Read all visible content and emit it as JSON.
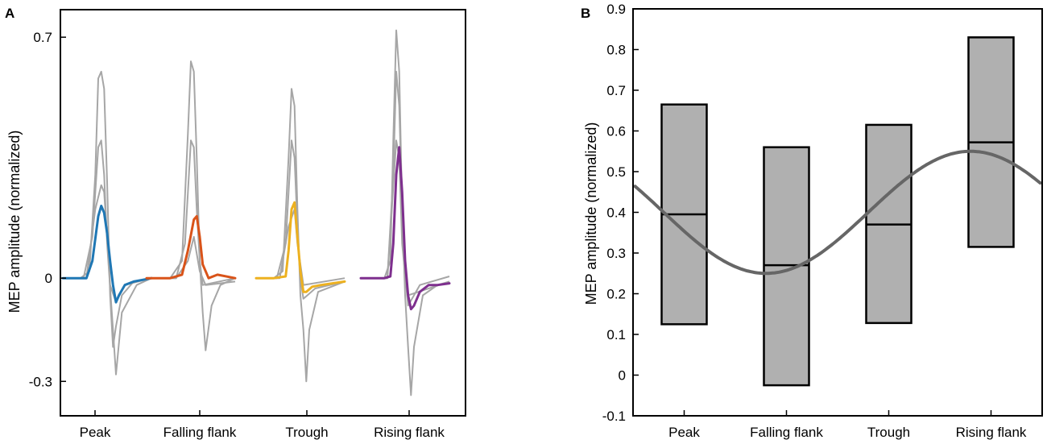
{
  "chart_data": [
    {
      "panel": "A",
      "type": "line",
      "title": "",
      "xlabel": "",
      "ylabel": "MEP amplitude (normalized)",
      "ylim": [
        -0.4,
        0.78
      ],
      "yticks": [
        -0.3,
        0,
        0.7
      ],
      "ytick_labels": [
        "-0.3",
        "0",
        "0.7"
      ],
      "categories": [
        "Peak",
        "Falling flank",
        "Trough",
        "Rising flank"
      ],
      "grid": false,
      "series": [
        {
          "name": "Peak",
          "color": "#1f77b4",
          "mean_trace": [
            [
              0,
              0
            ],
            [
              4,
              0
            ],
            [
              8,
              0
            ],
            [
              10,
              0.05
            ],
            [
              12,
              0.18
            ],
            [
              13,
              0.21
            ],
            [
              14,
              0.19
            ],
            [
              15,
              0.13
            ],
            [
              16,
              0.05
            ],
            [
              17,
              -0.02
            ],
            [
              18,
              -0.07
            ],
            [
              19,
              -0.05
            ],
            [
              21,
              -0.02
            ],
            [
              24,
              -0.01
            ],
            [
              27,
              -0.005
            ],
            [
              30,
              0
            ]
          ],
          "single_trials": [
            [
              [
                0,
                0
              ],
              [
                6,
                0
              ],
              [
                9,
                0.02
              ],
              [
                11,
                0.3
              ],
              [
                12,
                0.58
              ],
              [
                13,
                0.6
              ],
              [
                14,
                0.55
              ],
              [
                15,
                0.28
              ],
              [
                16,
                -0.05
              ],
              [
                17,
                -0.2
              ],
              [
                18,
                -0.14
              ],
              [
                20,
                -0.05
              ],
              [
                24,
                -0.01
              ],
              [
                30,
                0
              ]
            ],
            [
              [
                0,
                0
              ],
              [
                7,
                0
              ],
              [
                10,
                0.12
              ],
              [
                12,
                0.38
              ],
              [
                13,
                0.4
              ],
              [
                14,
                0.3
              ],
              [
                15,
                0.1
              ],
              [
                17,
                -0.15
              ],
              [
                18,
                -0.28
              ],
              [
                20,
                -0.1
              ],
              [
                25,
                -0.02
              ],
              [
                30,
                0
              ]
            ],
            [
              [
                0,
                0
              ],
              [
                8,
                0
              ],
              [
                11,
                0.2
              ],
              [
                13,
                0.27
              ],
              [
                14,
                0.25
              ],
              [
                15,
                0.12
              ],
              [
                16,
                -0.02
              ],
              [
                18,
                -0.07
              ],
              [
                21,
                -0.02
              ],
              [
                30,
                0
              ]
            ]
          ]
        },
        {
          "name": "Falling flank",
          "color": "#d95319",
          "mean_trace": [
            [
              0,
              0
            ],
            [
              8,
              0
            ],
            [
              12,
              0.01
            ],
            [
              14,
              0.08
            ],
            [
              16,
              0.17
            ],
            [
              17,
              0.18
            ],
            [
              18,
              0.12
            ],
            [
              19,
              0.04
            ],
            [
              21,
              0
            ],
            [
              24,
              0.01
            ],
            [
              30,
              0
            ]
          ],
          "single_trials": [
            [
              [
                0,
                0
              ],
              [
                8,
                0
              ],
              [
                12,
                0.05
              ],
              [
                14,
                0.42
              ],
              [
                15,
                0.63
              ],
              [
                16,
                0.6
              ],
              [
                17,
                0.35
              ],
              [
                18,
                0.05
              ],
              [
                19,
                -0.1
              ],
              [
                20,
                -0.21
              ],
              [
                22,
                -0.08
              ],
              [
                25,
                -0.02
              ],
              [
                30,
                0
              ]
            ],
            [
              [
                0,
                0
              ],
              [
                10,
                0
              ],
              [
                13,
                0.1
              ],
              [
                15,
                0.4
              ],
              [
                16,
                0.38
              ],
              [
                17,
                0.2
              ],
              [
                18,
                0.05
              ],
              [
                19,
                -0.02
              ],
              [
                30,
                0
              ]
            ],
            [
              [
                0,
                0
              ],
              [
                10,
                0
              ],
              [
                14,
                0.05
              ],
              [
                16,
                0.12
              ],
              [
                18,
                0.02
              ],
              [
                20,
                -0.02
              ],
              [
                30,
                -0.01
              ]
            ]
          ]
        },
        {
          "name": "Trough",
          "color": "#edb120",
          "mean_trace": [
            [
              0,
              0
            ],
            [
              6,
              0
            ],
            [
              10,
              0.005
            ],
            [
              11,
              0.08
            ],
            [
              12,
              0.2
            ],
            [
              13,
              0.22
            ],
            [
              14,
              0.12
            ],
            [
              15,
              0.02
            ],
            [
              16,
              -0.04
            ],
            [
              17,
              -0.04
            ],
            [
              19,
              -0.025
            ],
            [
              22,
              -0.02
            ],
            [
              30,
              -0.01
            ]
          ],
          "single_trials": [
            [
              [
                0,
                0
              ],
              [
                6,
                0
              ],
              [
                9,
                0.02
              ],
              [
                11,
                0.35
              ],
              [
                12,
                0.55
              ],
              [
                13,
                0.5
              ],
              [
                14,
                0.2
              ],
              [
                15,
                -0.05
              ],
              [
                16,
                -0.15
              ],
              [
                17,
                -0.3
              ],
              [
                18,
                -0.15
              ],
              [
                21,
                -0.04
              ],
              [
                30,
                -0.01
              ]
            ],
            [
              [
                0,
                0
              ],
              [
                7,
                0
              ],
              [
                10,
                0.1
              ],
              [
                12,
                0.4
              ],
              [
                13,
                0.35
              ],
              [
                14,
                0.15
              ],
              [
                15,
                0
              ],
              [
                16,
                -0.06
              ],
              [
                20,
                -0.03
              ],
              [
                30,
                -0.01
              ]
            ],
            [
              [
                0,
                0
              ],
              [
                8,
                0
              ],
              [
                11,
                0.15
              ],
              [
                13,
                0.2
              ],
              [
                14,
                0.1
              ],
              [
                16,
                -0.02
              ],
              [
                30,
                0
              ]
            ]
          ]
        },
        {
          "name": "Rising flank",
          "color": "#7e2f8e",
          "mean_trace": [
            [
              0,
              0
            ],
            [
              8,
              0
            ],
            [
              10,
              0.005
            ],
            [
              11,
              0.1
            ],
            [
              12,
              0.3
            ],
            [
              13,
              0.38
            ],
            [
              14,
              0.25
            ],
            [
              15,
              0.05
            ],
            [
              16,
              -0.05
            ],
            [
              17,
              -0.09
            ],
            [
              18,
              -0.08
            ],
            [
              20,
              -0.04
            ],
            [
              23,
              -0.02
            ],
            [
              26,
              -0.02
            ],
            [
              30,
              -0.015
            ]
          ],
          "single_trials": [
            [
              [
                0,
                0
              ],
              [
                8,
                0
              ],
              [
                10,
                0.05
              ],
              [
                11,
                0.4
              ],
              [
                12,
                0.72
              ],
              [
                13,
                0.6
              ],
              [
                14,
                0.2
              ],
              [
                15,
                -0.05
              ],
              [
                16,
                -0.2
              ],
              [
                17,
                -0.34
              ],
              [
                18,
                -0.2
              ],
              [
                21,
                -0.05
              ],
              [
                26,
                -0.02
              ],
              [
                30,
                -0.01
              ]
            ],
            [
              [
                0,
                0
              ],
              [
                9,
                0
              ],
              [
                11,
                0.3
              ],
              [
                12,
                0.6
              ],
              [
                13,
                0.5
              ],
              [
                14,
                0.2
              ],
              [
                15,
                0
              ],
              [
                16,
                -0.05
              ],
              [
                30,
                -0.01
              ]
            ],
            [
              [
                0,
                0
              ],
              [
                9,
                0
              ],
              [
                12,
                0.4
              ],
              [
                13,
                0.35
              ],
              [
                14,
                0.1
              ],
              [
                16,
                -0.08
              ],
              [
                20,
                -0.02
              ],
              [
                30,
                0.005
              ]
            ]
          ]
        }
      ]
    },
    {
      "panel": "B",
      "type": "box",
      "title": "",
      "xlabel": "",
      "ylabel": "MEP amplitude (normalized)",
      "ylim": [
        -0.1,
        0.9
      ],
      "yticks": [
        -0.1,
        0,
        0.1,
        0.2,
        0.3,
        0.4,
        0.5,
        0.6,
        0.7,
        0.8,
        0.9
      ],
      "ytick_labels": [
        "-0.1",
        "0",
        "0.1",
        "0.2",
        "0.3",
        "0.4",
        "0.5",
        "0.6",
        "0.7",
        "0.8",
        "0.9"
      ],
      "categories": [
        "Peak",
        "Falling flank",
        "Trough",
        "Rising flank"
      ],
      "grid": false,
      "box_color": "#b0b0b0",
      "boxes": [
        {
          "name": "Peak",
          "low": 0.125,
          "median": 0.395,
          "high": 0.665
        },
        {
          "name": "Falling flank",
          "low": -0.025,
          "median": 0.27,
          "high": 0.56
        },
        {
          "name": "Trough",
          "low": 0.128,
          "median": 0.37,
          "high": 0.615
        },
        {
          "name": "Rising flank",
          "low": 0.315,
          "median": 0.572,
          "high": 0.83
        }
      ],
      "fit": {
        "type": "sinusoid",
        "color": "#666666",
        "mean": 0.4,
        "amplitude": 0.15,
        "minimum_at_category": 1.8,
        "period_in_categories": 4,
        "x_range_in_categories": [
          0.52,
          4.48
        ]
      }
    }
  ],
  "labels": {
    "panel_a_letter": "A",
    "panel_b_letter": "B",
    "ylabel": "MEP amplitude (normalized)"
  },
  "colors": {
    "trial_gray": "#a6a6a6",
    "axis": "#000000"
  }
}
